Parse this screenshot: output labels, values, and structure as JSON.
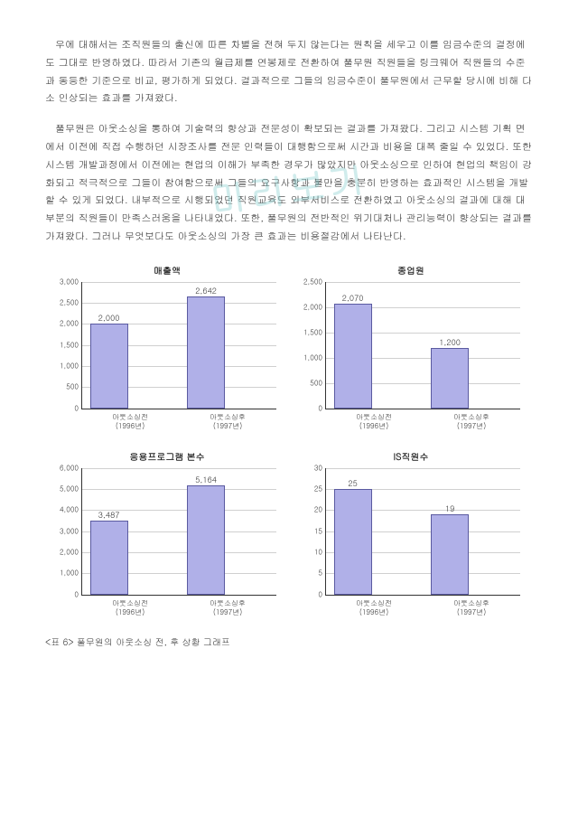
{
  "watermark": "미리보기",
  "para1": "우에 대해서는 조직원들의 출신에 따른 차별을 전혀 두지 않는다는 원칙을 세우고 이를 임금수준의 결정에도 그대로 반영하였다. 따라서 기존의 월급제를 연봉제로 전환하여 풀무원 직원들을 링크웨어 직원들의 수준과 동등한 기준으로 비교, 평가하게 되었다. 결과적으로 그들의 임금수준이 풀무원에서 근무할 당시에 비해 다소 인상되는 효과를 가져왔다.",
  "para2": "풀무원은 아웃소싱을 통하여 기술력의 향상과 전문성이 확보되는 결과를 가져왔다. 그리고 시스템 기획 면에서 이전에 직접 수행하던 시장조사를 전문 인력들이 대행함으로써 시간과 비용을 대폭 줄일 수 있었다. 또한 시스템 개발과정에서 이전에는 현업의 이해가 부족한 경우가 많았지만 아웃소싱으로 인하여 현업의 책임이 강화되고 적극적으로 그들이 참여함으로써 그들의 요구사항과 불만을 충분히 반영하는 효과적인 시스템을 개발할 수 있게 되었다. 내부적으로 시행되었던 직원교육도 외부서비스로 전환하였고 아웃소싱의 결과에 대해 대부분의 직원들이 만족스러움을 나타내었다. 또한, 풀무원의 전반적인 위기대처나 관리능력이 향상되는 결과를 가져왔다. 그러나 무엇보다도 아웃소싱의 가장 큰 효과는 비용절감에서 나타난다.",
  "charts": [
    {
      "title": "매출액",
      "ymax": 3000,
      "ystep": 500,
      "bar_color": "#b0b0e8",
      "bar_border": "#5a5aa0",
      "grid_color": "#d0d0d0",
      "bars": [
        {
          "value": 2000,
          "label": "2,000",
          "xLabel": "아웃소싱전\n(1996년)"
        },
        {
          "value": 2642,
          "label": "2,642",
          "xLabel": "아웃소싱후\n(1997년)"
        }
      ]
    },
    {
      "title": "종업원",
      "ymax": 2500,
      "ystep": 500,
      "bar_color": "#b0b0e8",
      "bar_border": "#5a5aa0",
      "grid_color": "#d0d0d0",
      "bars": [
        {
          "value": 2070,
          "label": "2,070",
          "xLabel": "아웃소싱전\n(1996년)"
        },
        {
          "value": 1200,
          "label": "1,200",
          "xLabel": "아웃소싱후\n(1997년)"
        }
      ]
    },
    {
      "title": "응용프로그램 본수",
      "ymax": 6000,
      "ystep": 1000,
      "bar_color": "#b0b0e8",
      "bar_border": "#5a5aa0",
      "grid_color": "#d0d0d0",
      "bars": [
        {
          "value": 3487,
          "label": "3,487",
          "xLabel": "아웃소싱전\n(1996년)"
        },
        {
          "value": 5164,
          "label": "5,164",
          "xLabel": "아웃소싱후\n(1997년)"
        }
      ]
    },
    {
      "title": "IS직원수",
      "ymax": 30,
      "ystep": 5,
      "bar_color": "#b0b0e8",
      "bar_border": "#5a5aa0",
      "grid_color": "#d0d0d0",
      "bars": [
        {
          "value": 25,
          "label": "25",
          "xLabel": "아웃소싱전\n(1996년)"
        },
        {
          "value": 19,
          "label": "19",
          "xLabel": "아웃소싱후\n(1997년)"
        }
      ]
    }
  ],
  "caption": "<표 6> 풀무원의 아웃소싱 전, 후 상황 그래프"
}
